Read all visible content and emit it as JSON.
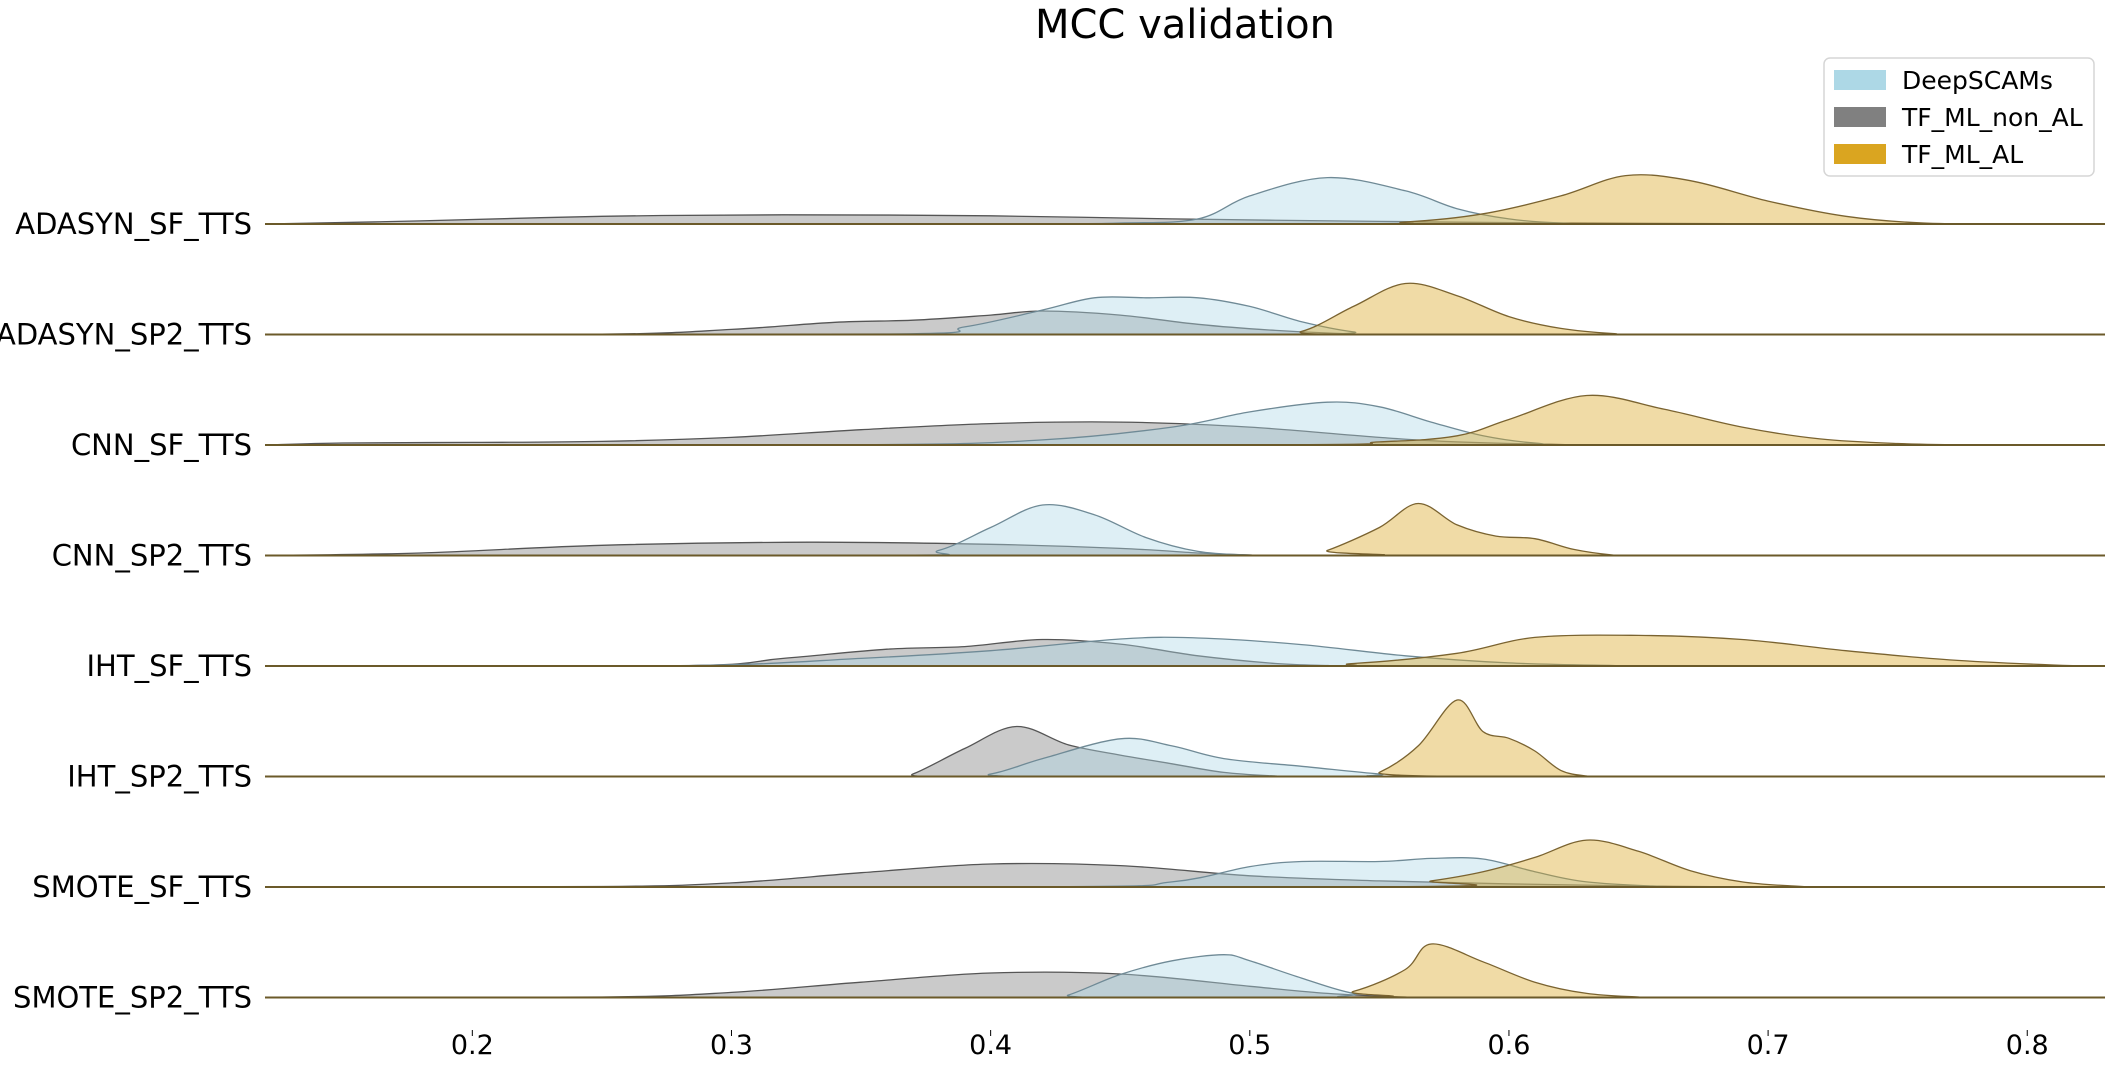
{
  "chart_data": {
    "type": "area",
    "subtype": "ridgeline-kde",
    "title": "MCC validation",
    "xlabel": "",
    "ylabel": "",
    "xlim": [
      0.12,
      0.83
    ],
    "xticks": [
      0.2,
      0.3,
      0.4,
      0.5,
      0.6,
      0.7,
      0.8
    ],
    "xtick_labels": [
      "0.2",
      "0.3",
      "0.4",
      "0.5",
      "0.6",
      "0.7",
      "0.8"
    ],
    "grid": false,
    "legend": {
      "position": "top-right",
      "entries": [
        {
          "label": "DeepSCAMs",
          "color": "#add8e6"
        },
        {
          "label": "TF_ML_non_AL",
          "color": "#808080"
        },
        {
          "label": "TF_ML_AL",
          "color": "#daa520"
        }
      ]
    },
    "rows": [
      {
        "label": "ADASYN_SF_TTS",
        "series": {
          "DeepSCAMs": [
            [
              0.12,
              0
            ],
            [
              0.4,
              0.004
            ],
            [
              0.45,
              0.02
            ],
            [
              0.48,
              0.1
            ],
            [
              0.5,
              0.55
            ],
            [
              0.53,
              0.91
            ],
            [
              0.56,
              0.65
            ],
            [
              0.58,
              0.3
            ],
            [
              0.6,
              0.1
            ],
            [
              0.62,
              0.02
            ],
            [
              0.65,
              0
            ]
          ],
          "TF_ML_non_AL": [
            [
              0.12,
              0
            ],
            [
              0.18,
              0.06
            ],
            [
              0.25,
              0.15
            ],
            [
              0.32,
              0.18
            ],
            [
              0.4,
              0.16
            ],
            [
              0.47,
              0.1
            ],
            [
              0.55,
              0.05
            ],
            [
              0.62,
              0.02
            ],
            [
              0.7,
              0.004
            ],
            [
              0.75,
              0
            ]
          ],
          "TF_ML_AL": [
            [
              0.12,
              0
            ],
            [
              0.52,
              0.002
            ],
            [
              0.56,
              0.04
            ],
            [
              0.59,
              0.2
            ],
            [
              0.62,
              0.55
            ],
            [
              0.645,
              0.95
            ],
            [
              0.67,
              0.85
            ],
            [
              0.7,
              0.45
            ],
            [
              0.73,
              0.15
            ],
            [
              0.76,
              0.02
            ],
            [
              0.8,
              0
            ]
          ]
        }
      },
      {
        "label": "ADASYN_SP2_TTS",
        "series": {
          "DeepSCAMs": [
            [
              0.12,
              0
            ],
            [
              0.36,
              0.01
            ],
            [
              0.39,
              0.15
            ],
            [
              0.42,
              0.48
            ],
            [
              0.44,
              0.72
            ],
            [
              0.46,
              0.72
            ],
            [
              0.48,
              0.72
            ],
            [
              0.5,
              0.55
            ],
            [
              0.52,
              0.25
            ],
            [
              0.54,
              0.05
            ],
            [
              0.56,
              0
            ]
          ],
          "TF_ML_non_AL": [
            [
              0.12,
              0
            ],
            [
              0.25,
              0.005
            ],
            [
              0.3,
              0.1
            ],
            [
              0.34,
              0.24
            ],
            [
              0.37,
              0.28
            ],
            [
              0.4,
              0.38
            ],
            [
              0.42,
              0.46
            ],
            [
              0.45,
              0.38
            ],
            [
              0.48,
              0.2
            ],
            [
              0.51,
              0.08
            ],
            [
              0.54,
              0.01
            ],
            [
              0.56,
              0
            ]
          ],
          "TF_ML_AL": [
            [
              0.12,
              0
            ],
            [
              0.5,
              0.002
            ],
            [
              0.52,
              0.06
            ],
            [
              0.54,
              0.55
            ],
            [
              0.56,
              1.0
            ],
            [
              0.58,
              0.76
            ],
            [
              0.6,
              0.35
            ],
            [
              0.62,
              0.12
            ],
            [
              0.64,
              0.02
            ],
            [
              0.66,
              0
            ]
          ]
        }
      },
      {
        "label": "CNN_SF_TTS",
        "series": {
          "DeepSCAMs": [
            [
              0.12,
              0
            ],
            [
              0.35,
              0.005
            ],
            [
              0.42,
              0.1
            ],
            [
              0.47,
              0.35
            ],
            [
              0.5,
              0.65
            ],
            [
              0.53,
              0.84
            ],
            [
              0.55,
              0.75
            ],
            [
              0.57,
              0.45
            ],
            [
              0.59,
              0.18
            ],
            [
              0.61,
              0.04
            ],
            [
              0.64,
              0
            ]
          ],
          "TF_ML_non_AL": [
            [
              0.12,
              0
            ],
            [
              0.15,
              0.04
            ],
            [
              0.2,
              0.05
            ],
            [
              0.25,
              0.07
            ],
            [
              0.3,
              0.15
            ],
            [
              0.35,
              0.3
            ],
            [
              0.4,
              0.42
            ],
            [
              0.45,
              0.45
            ],
            [
              0.5,
              0.35
            ],
            [
              0.55,
              0.15
            ],
            [
              0.58,
              0.06
            ],
            [
              0.62,
              0.01
            ],
            [
              0.65,
              0
            ]
          ],
          "TF_ML_AL": [
            [
              0.12,
              0
            ],
            [
              0.5,
              0.004
            ],
            [
              0.55,
              0.06
            ],
            [
              0.58,
              0.18
            ],
            [
              0.6,
              0.5
            ],
            [
              0.63,
              0.97
            ],
            [
              0.66,
              0.7
            ],
            [
              0.69,
              0.35
            ],
            [
              0.72,
              0.12
            ],
            [
              0.75,
              0.03
            ],
            [
              0.78,
              0
            ]
          ]
        }
      },
      {
        "label": "CNN_SP2_TTS",
        "series": {
          "DeepSCAMs": [
            [
              0.12,
              0
            ],
            [
              0.36,
              0.003
            ],
            [
              0.38,
              0.1
            ],
            [
              0.4,
              0.55
            ],
            [
              0.42,
              0.99
            ],
            [
              0.44,
              0.8
            ],
            [
              0.46,
              0.35
            ],
            [
              0.48,
              0.08
            ],
            [
              0.5,
              0.01
            ],
            [
              0.52,
              0
            ]
          ],
          "TF_ML_non_AL": [
            [
              0.12,
              0
            ],
            [
              0.18,
              0.05
            ],
            [
              0.25,
              0.2
            ],
            [
              0.33,
              0.26
            ],
            [
              0.4,
              0.22
            ],
            [
              0.45,
              0.14
            ],
            [
              0.48,
              0.05
            ],
            [
              0.5,
              0.01
            ],
            [
              0.52,
              0
            ]
          ],
          "TF_ML_AL": [
            [
              0.12,
              0
            ],
            [
              0.52,
              0.002
            ],
            [
              0.53,
              0.1
            ],
            [
              0.55,
              0.55
            ],
            [
              0.565,
              1.02
            ],
            [
              0.58,
              0.6
            ],
            [
              0.595,
              0.38
            ],
            [
              0.61,
              0.33
            ],
            [
              0.625,
              0.12
            ],
            [
              0.64,
              0.01
            ],
            [
              0.65,
              0
            ]
          ]
        }
      },
      {
        "label": "IHT_SF_TTS",
        "series": {
          "DeepSCAMs": [
            [
              0.12,
              0
            ],
            [
              0.28,
              0.005
            ],
            [
              0.35,
              0.15
            ],
            [
              0.4,
              0.3
            ],
            [
              0.45,
              0.53
            ],
            [
              0.48,
              0.55
            ],
            [
              0.52,
              0.42
            ],
            [
              0.56,
              0.2
            ],
            [
              0.6,
              0.06
            ],
            [
              0.64,
              0.01
            ],
            [
              0.66,
              0
            ]
          ],
          "TF_ML_non_AL": [
            [
              0.12,
              0
            ],
            [
              0.28,
              0.005
            ],
            [
              0.32,
              0.15
            ],
            [
              0.36,
              0.33
            ],
            [
              0.39,
              0.38
            ],
            [
              0.42,
              0.52
            ],
            [
              0.45,
              0.43
            ],
            [
              0.48,
              0.2
            ],
            [
              0.51,
              0.05
            ],
            [
              0.53,
              0.01
            ],
            [
              0.54,
              0
            ]
          ],
          "TF_ML_AL": [
            [
              0.12,
              0
            ],
            [
              0.5,
              0.002
            ],
            [
              0.54,
              0.05
            ],
            [
              0.58,
              0.25
            ],
            [
              0.61,
              0.56
            ],
            [
              0.65,
              0.6
            ],
            [
              0.69,
              0.52
            ],
            [
              0.73,
              0.3
            ],
            [
              0.77,
              0.12
            ],
            [
              0.81,
              0.02
            ],
            [
              0.83,
              0
            ]
          ]
        }
      },
      {
        "label": "IHT_SP2_TTS",
        "series": {
          "DeepSCAMs": [
            [
              0.12,
              0
            ],
            [
              0.38,
              0.003
            ],
            [
              0.4,
              0.05
            ],
            [
              0.42,
              0.35
            ],
            [
              0.45,
              0.74
            ],
            [
              0.47,
              0.6
            ],
            [
              0.49,
              0.35
            ],
            [
              0.52,
              0.2
            ],
            [
              0.55,
              0.05
            ],
            [
              0.57,
              0
            ]
          ],
          "TF_ML_non_AL": [
            [
              0.12,
              0
            ],
            [
              0.36,
              0.003
            ],
            [
              0.37,
              0.05
            ],
            [
              0.39,
              0.55
            ],
            [
              0.41,
              0.98
            ],
            [
              0.43,
              0.62
            ],
            [
              0.45,
              0.42
            ],
            [
              0.47,
              0.25
            ],
            [
              0.49,
              0.08
            ],
            [
              0.51,
              0.01
            ],
            [
              0.52,
              0
            ]
          ],
          "TF_ML_AL": [
            [
              0.12,
              0
            ],
            [
              0.54,
              0.002
            ],
            [
              0.55,
              0.08
            ],
            [
              0.565,
              0.6
            ],
            [
              0.58,
              1.5
            ],
            [
              0.59,
              0.88
            ],
            [
              0.6,
              0.75
            ],
            [
              0.61,
              0.5
            ],
            [
              0.62,
              0.12
            ],
            [
              0.63,
              0.01
            ],
            [
              0.64,
              0
            ]
          ]
        }
      },
      {
        "label": "SMOTE_SF_TTS",
        "series": {
          "DeepSCAMs": [
            [
              0.12,
              0
            ],
            [
              0.42,
              0.004
            ],
            [
              0.47,
              0.1
            ],
            [
              0.5,
              0.4
            ],
            [
              0.52,
              0.5
            ],
            [
              0.55,
              0.5
            ],
            [
              0.57,
              0.56
            ],
            [
              0.59,
              0.55
            ],
            [
              0.61,
              0.3
            ],
            [
              0.63,
              0.1
            ],
            [
              0.66,
              0.01
            ],
            [
              0.68,
              0
            ]
          ],
          "TF_ML_non_AL": [
            [
              0.12,
              0
            ],
            [
              0.25,
              0.01
            ],
            [
              0.3,
              0.08
            ],
            [
              0.35,
              0.28
            ],
            [
              0.4,
              0.45
            ],
            [
              0.45,
              0.42
            ],
            [
              0.5,
              0.22
            ],
            [
              0.55,
              0.12
            ],
            [
              0.6,
              0.06
            ],
            [
              0.65,
              0.02
            ],
            [
              0.7,
              0
            ]
          ],
          "TF_ML_AL": [
            [
              0.12,
              0
            ],
            [
              0.55,
              0.004
            ],
            [
              0.57,
              0.12
            ],
            [
              0.59,
              0.3
            ],
            [
              0.61,
              0.58
            ],
            [
              0.63,
              0.92
            ],
            [
              0.65,
              0.7
            ],
            [
              0.67,
              0.32
            ],
            [
              0.69,
              0.1
            ],
            [
              0.71,
              0.02
            ],
            [
              0.73,
              0
            ]
          ]
        }
      },
      {
        "label": "SMOTE_SP2_TTS",
        "series": {
          "DeepSCAMs": [
            [
              0.12,
              0
            ],
            [
              0.42,
              0.003
            ],
            [
              0.43,
              0.05
            ],
            [
              0.45,
              0.45
            ],
            [
              0.47,
              0.72
            ],
            [
              0.49,
              0.84
            ],
            [
              0.5,
              0.72
            ],
            [
              0.52,
              0.38
            ],
            [
              0.54,
              0.08
            ],
            [
              0.56,
              0
            ]
          ],
          "TF_ML_non_AL": [
            [
              0.12,
              0
            ],
            [
              0.25,
              0.01
            ],
            [
              0.3,
              0.1
            ],
            [
              0.35,
              0.3
            ],
            [
              0.4,
              0.48
            ],
            [
              0.45,
              0.46
            ],
            [
              0.5,
              0.22
            ],
            [
              0.53,
              0.08
            ],
            [
              0.56,
              0.01
            ],
            [
              0.58,
              0
            ]
          ],
          "TF_ML_AL": [
            [
              0.12,
              0
            ],
            [
              0.52,
              0.004
            ],
            [
              0.54,
              0.12
            ],
            [
              0.56,
              0.55
            ],
            [
              0.57,
              1.05
            ],
            [
              0.59,
              0.7
            ],
            [
              0.61,
              0.3
            ],
            [
              0.63,
              0.08
            ],
            [
              0.65,
              0.01
            ],
            [
              0.66,
              0
            ]
          ]
        }
      }
    ]
  }
}
